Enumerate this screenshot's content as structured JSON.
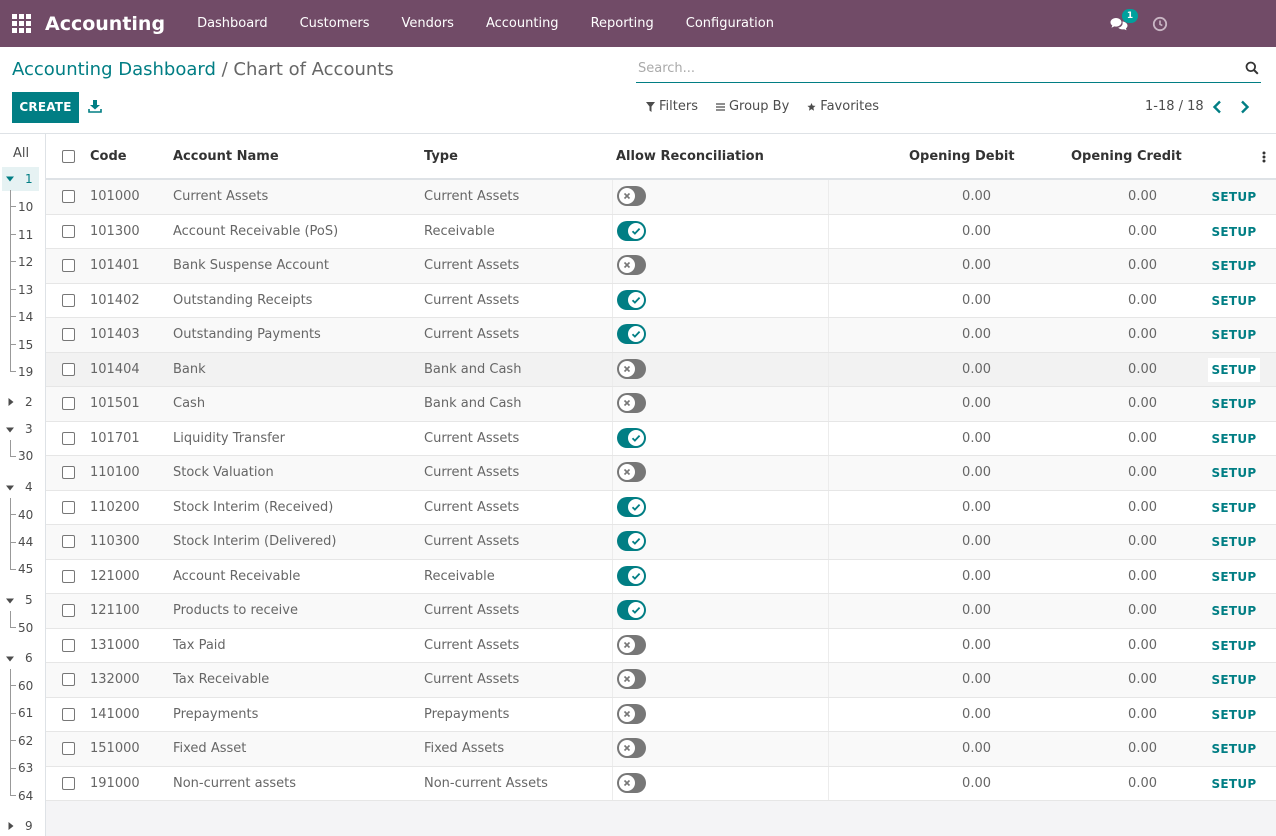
{
  "navbar": {
    "app_title": "Accounting",
    "menu": [
      "Dashboard",
      "Customers",
      "Vendors",
      "Accounting",
      "Reporting",
      "Configuration"
    ],
    "chat_badge": "1"
  },
  "breadcrumb": {
    "parent": "Accounting Dashboard",
    "separator": " / ",
    "current": "Chart of Accounts"
  },
  "search": {
    "placeholder": "Search..."
  },
  "toolbar": {
    "create_label": "CREATE",
    "filters_label": "Filters",
    "groupby_label": "Group By",
    "favorites_label": "Favorites",
    "pager_label": "1-18 / 18"
  },
  "tree": {
    "all_label": "All",
    "nodes": [
      "1",
      "10",
      "11",
      "12",
      "13",
      "14",
      "15",
      "19",
      "2",
      "3",
      "30",
      "4",
      "40",
      "44",
      "45",
      "5",
      "50",
      "6",
      "60",
      "61",
      "62",
      "63",
      "64",
      "9"
    ]
  },
  "table": {
    "headers": {
      "code": "Code",
      "name": "Account Name",
      "type": "Type",
      "reconcile": "Allow Reconciliation",
      "debit": "Opening Debit",
      "credit": "Opening Credit"
    },
    "setup_label": "SETUP",
    "rows": [
      {
        "code": "101000",
        "name": "Current Assets",
        "type": "Current Assets",
        "reconcile": false,
        "debit": "0.00",
        "credit": "0.00"
      },
      {
        "code": "101300",
        "name": "Account Receivable (PoS)",
        "type": "Receivable",
        "reconcile": true,
        "debit": "0.00",
        "credit": "0.00"
      },
      {
        "code": "101401",
        "name": "Bank Suspense Account",
        "type": "Current Assets",
        "reconcile": false,
        "debit": "0.00",
        "credit": "0.00"
      },
      {
        "code": "101402",
        "name": "Outstanding Receipts",
        "type": "Current Assets",
        "reconcile": true,
        "debit": "0.00",
        "credit": "0.00"
      },
      {
        "code": "101403",
        "name": "Outstanding Payments",
        "type": "Current Assets",
        "reconcile": true,
        "debit": "0.00",
        "credit": "0.00"
      },
      {
        "code": "101404",
        "name": "Bank",
        "type": "Bank and Cash",
        "reconcile": false,
        "debit": "0.00",
        "credit": "0.00"
      },
      {
        "code": "101501",
        "name": "Cash",
        "type": "Bank and Cash",
        "reconcile": false,
        "debit": "0.00",
        "credit": "0.00"
      },
      {
        "code": "101701",
        "name": "Liquidity Transfer",
        "type": "Current Assets",
        "reconcile": true,
        "debit": "0.00",
        "credit": "0.00"
      },
      {
        "code": "110100",
        "name": "Stock Valuation",
        "type": "Current Assets",
        "reconcile": false,
        "debit": "0.00",
        "credit": "0.00"
      },
      {
        "code": "110200",
        "name": "Stock Interim (Received)",
        "type": "Current Assets",
        "reconcile": true,
        "debit": "0.00",
        "credit": "0.00"
      },
      {
        "code": "110300",
        "name": "Stock Interim (Delivered)",
        "type": "Current Assets",
        "reconcile": true,
        "debit": "0.00",
        "credit": "0.00"
      },
      {
        "code": "121000",
        "name": "Account Receivable",
        "type": "Receivable",
        "reconcile": true,
        "debit": "0.00",
        "credit": "0.00"
      },
      {
        "code": "121100",
        "name": "Products to receive",
        "type": "Current Assets",
        "reconcile": true,
        "debit": "0.00",
        "credit": "0.00"
      },
      {
        "code": "131000",
        "name": "Tax Paid",
        "type": "Current Assets",
        "reconcile": false,
        "debit": "0.00",
        "credit": "0.00"
      },
      {
        "code": "132000",
        "name": "Tax Receivable",
        "type": "Current Assets",
        "reconcile": false,
        "debit": "0.00",
        "credit": "0.00"
      },
      {
        "code": "141000",
        "name": "Prepayments",
        "type": "Prepayments",
        "reconcile": false,
        "debit": "0.00",
        "credit": "0.00"
      },
      {
        "code": "151000",
        "name": "Fixed Asset",
        "type": "Fixed Assets",
        "reconcile": false,
        "debit": "0.00",
        "credit": "0.00"
      },
      {
        "code": "191000",
        "name": "Non-current assets",
        "type": "Non-current Assets",
        "reconcile": false,
        "debit": "0.00",
        "credit": "0.00"
      }
    ]
  },
  "colors": {
    "navbar": "#714B67",
    "primary": "#017e84",
    "badge": "#00A09D"
  }
}
